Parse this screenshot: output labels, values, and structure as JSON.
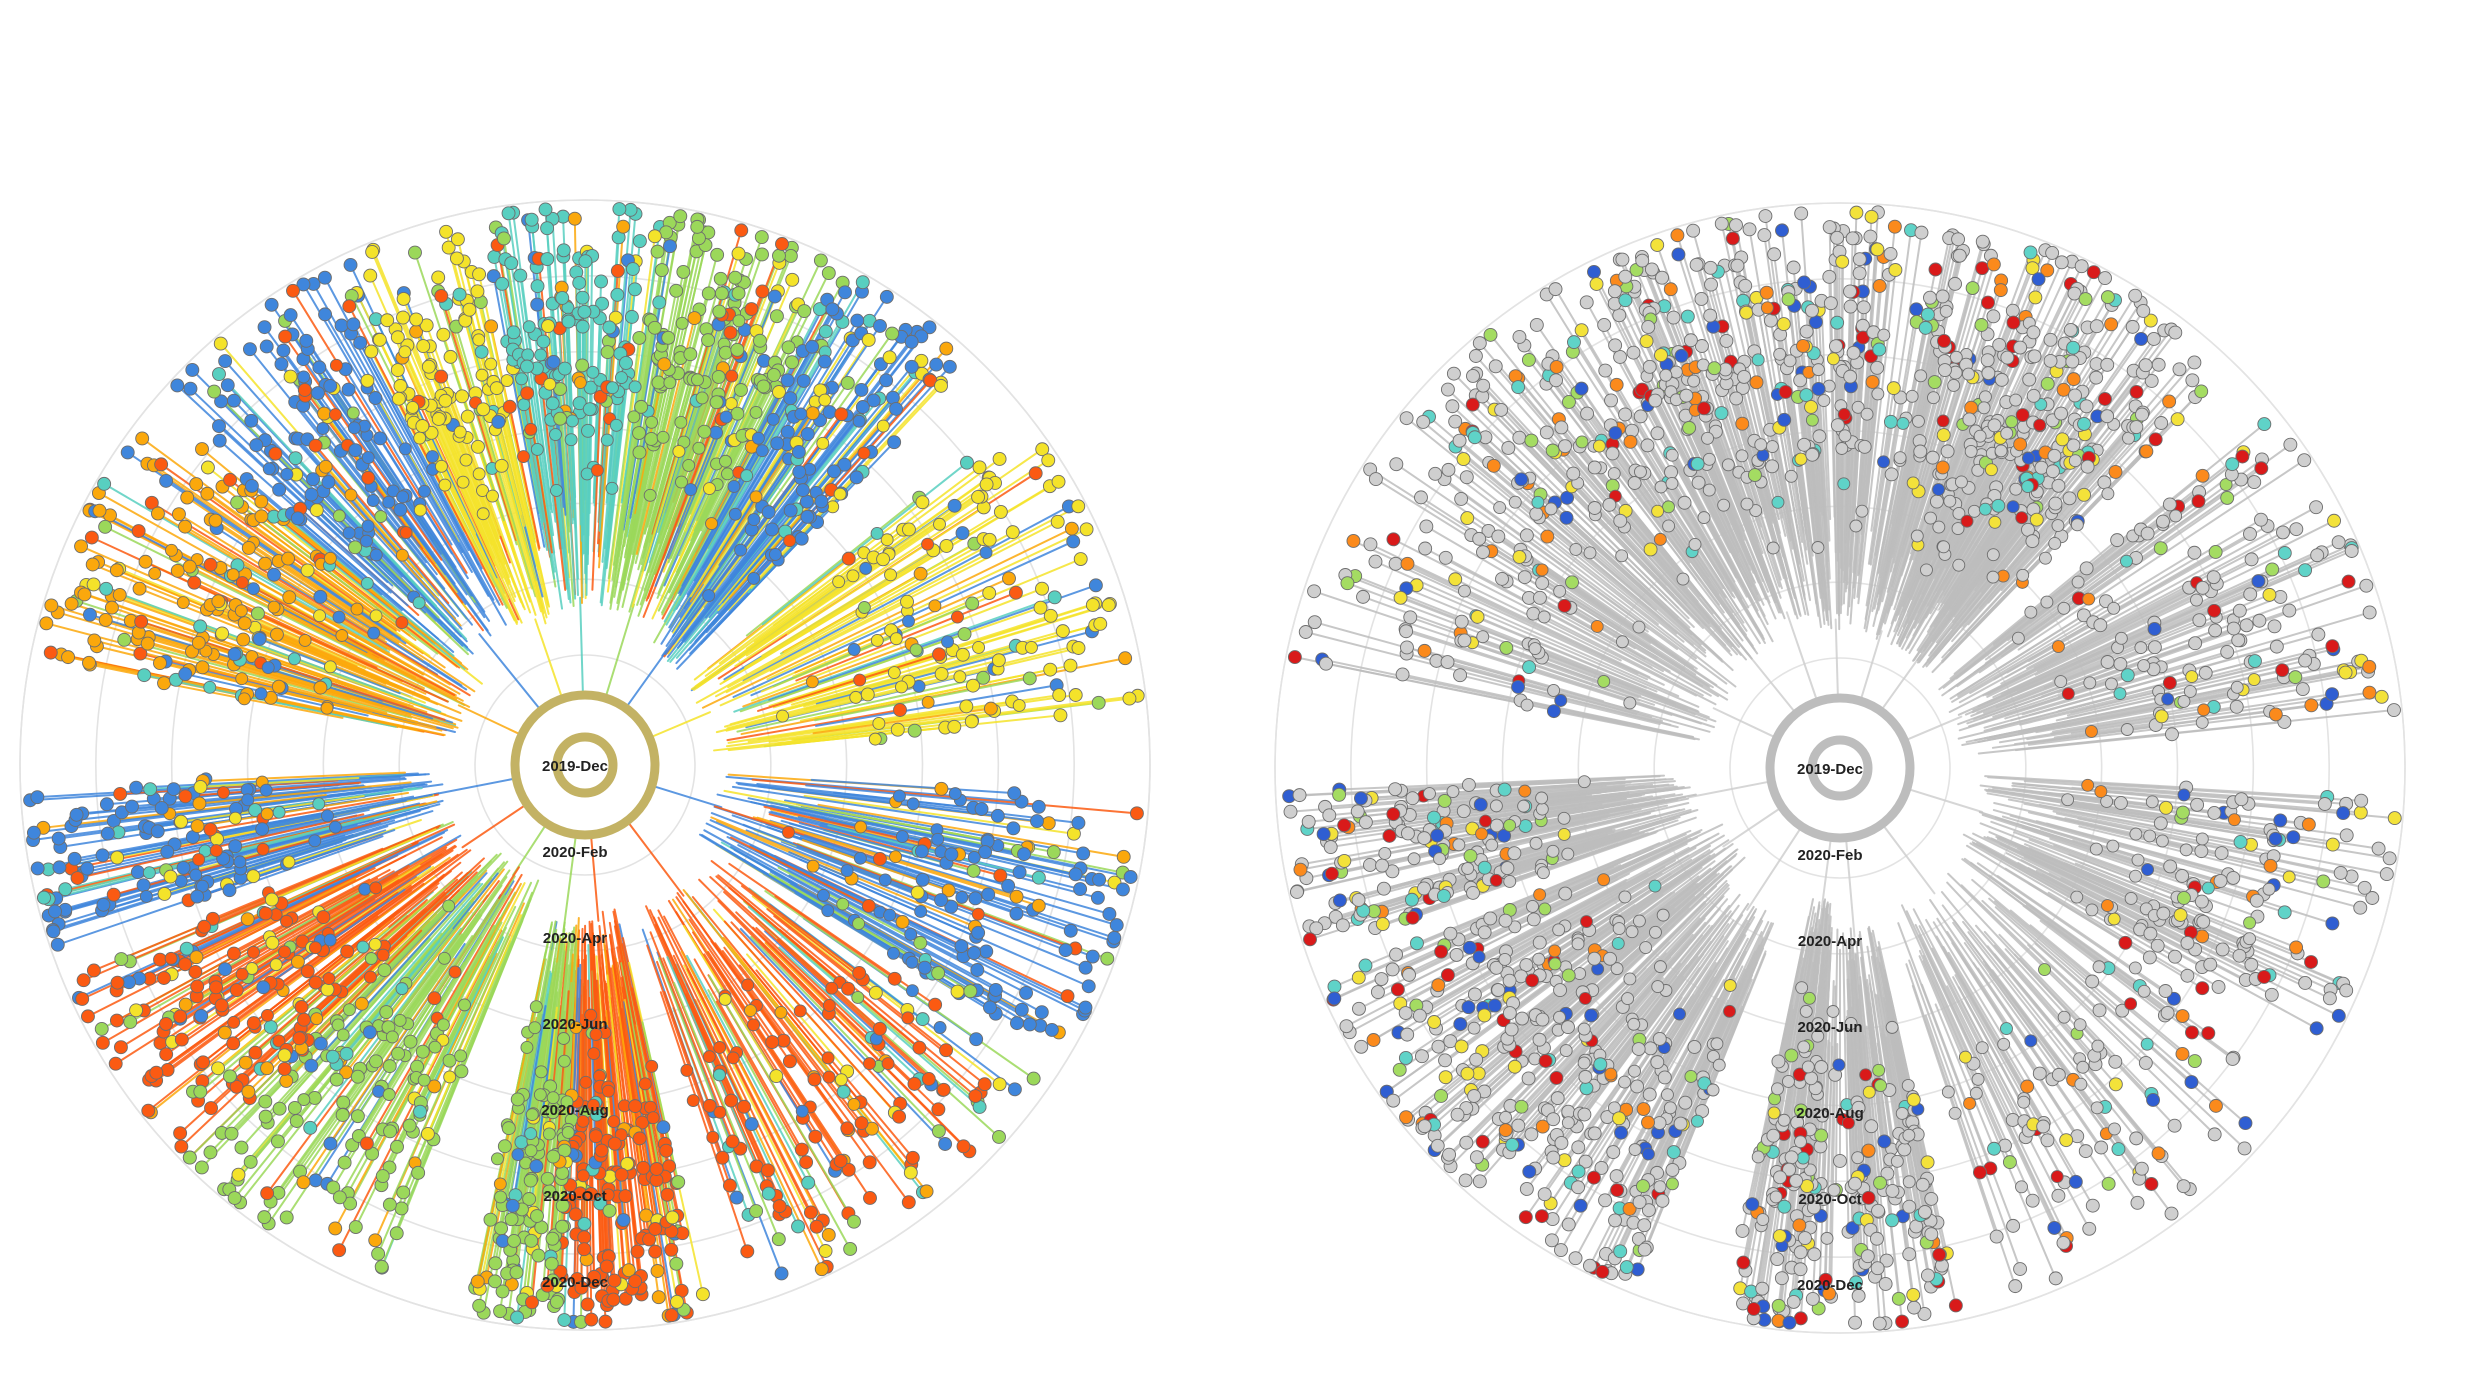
{
  "trees": [
    {
      "id": "left",
      "ring_labels": [
        "2019-Dec",
        "2020-Feb",
        "2020-Apr",
        "2020-Jun",
        "2020-Aug",
        "2020-Oct",
        "2020-Dec"
      ],
      "hub_color": "#c3b264",
      "palette": [
        "#fb5a12",
        "#fba80c",
        "#f4e32a",
        "#9bd85a",
        "#58cfc0",
        "#3f86dc"
      ],
      "default_color": null
    },
    {
      "id": "right",
      "ring_labels": [
        "2019-Dec",
        "2020-Feb",
        "2020-Apr",
        "2020-Jun",
        "2020-Aug",
        "2020-Oct",
        "2020-Dec"
      ],
      "hub_color": "#bdbdbd",
      "palette": [
        "#d91a1a",
        "#fb8a1c",
        "#f3e23a",
        "#a4dc62",
        "#5fd3c8",
        "#2f5ed2"
      ],
      "default_color": "#cfcfcf"
    }
  ]
}
